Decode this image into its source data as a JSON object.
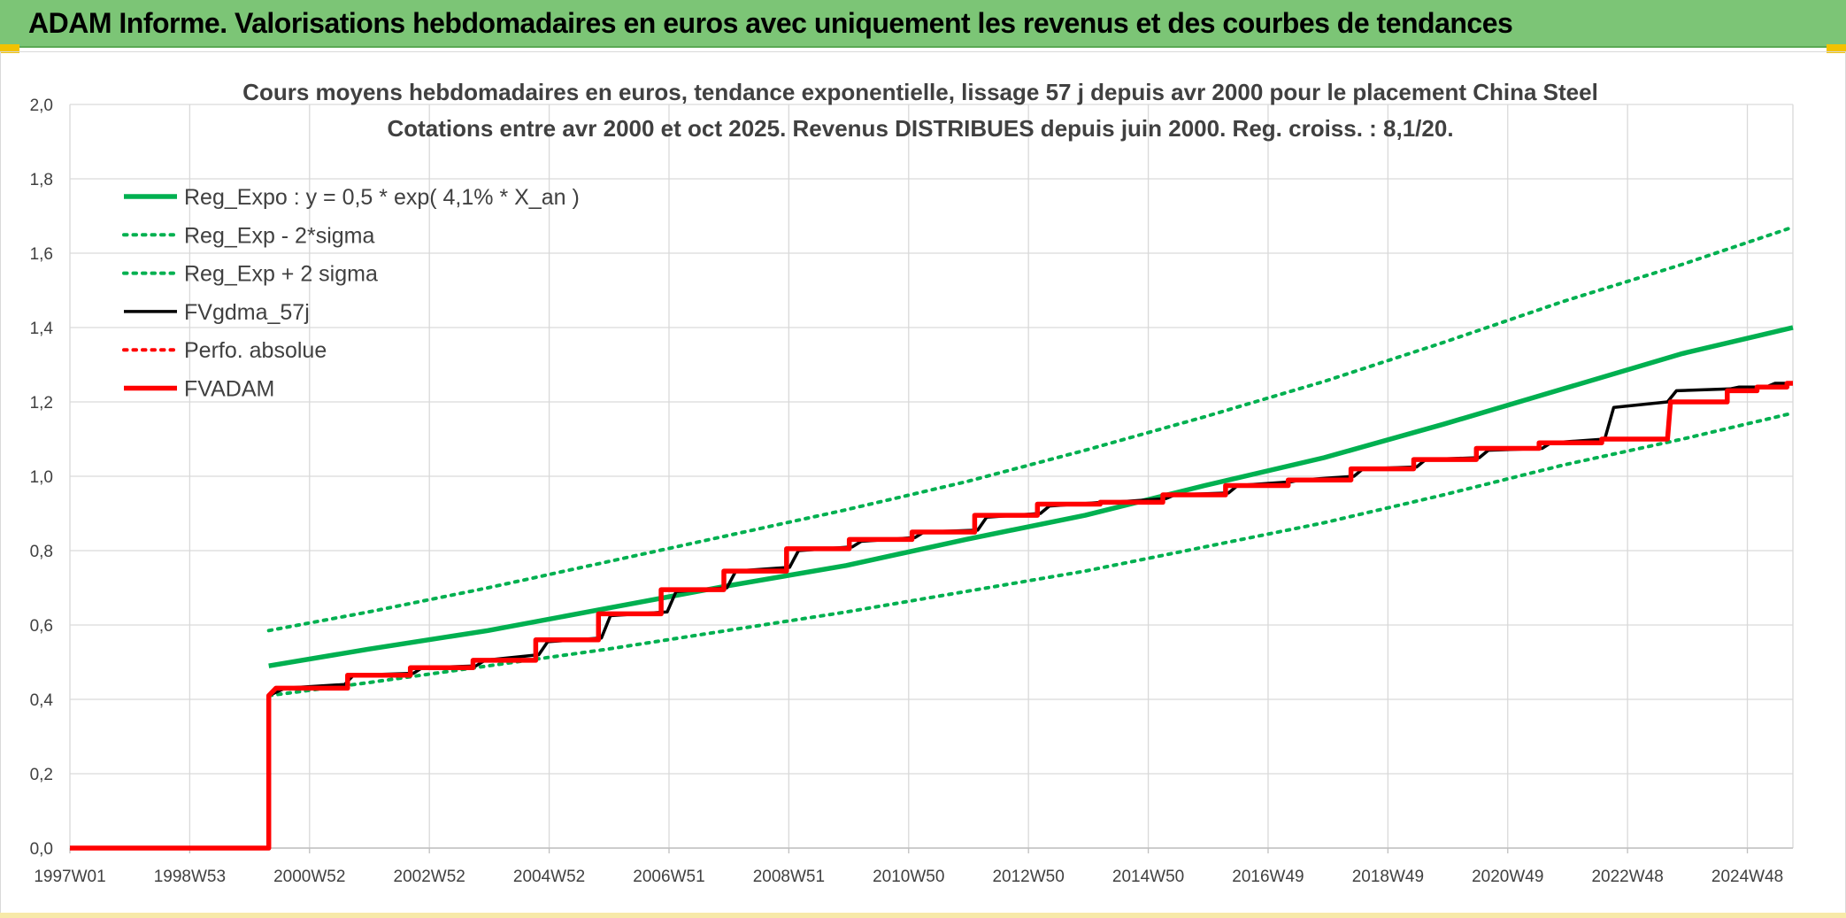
{
  "banner": {
    "title": "ADAM Informe. Valorisations hebdomadaires en euros avec uniquement les revenus et des courbes de tendances"
  },
  "colors": {
    "banner_bg": "#7cc576",
    "reg_expo": "#00b050",
    "fvgdma": "#000000",
    "perfo": "#ff0000",
    "fvadam": "#ff0000"
  },
  "chart_data": {
    "type": "line",
    "title": "Cours moyens hebdomadaires en euros, tendance exponentielle, lissage 57 j depuis avr 2000 pour le placement China Steel",
    "subtitle": "Cotations entre avr 2000 et oct 2025. Revenus DISTRIBUES depuis juin 2000. Reg. croiss. : 8,1/20.",
    "x_ticks": [
      "1997W01",
      "1998W53",
      "2000W52",
      "2002W52",
      "2004W52",
      "2006W51",
      "2008W51",
      "2010W50",
      "2012W50",
      "2014W50",
      "2016W49",
      "2018W49",
      "2020W49",
      "2022W48",
      "2024W48"
    ],
    "x_range": [
      1997.0,
      2025.85
    ],
    "ylim": [
      0,
      2.0
    ],
    "y_ticks": [
      "0,0",
      "0,2",
      "0,4",
      "0,6",
      "0,8",
      "1,0",
      "1,2",
      "1,4",
      "1,6",
      "1,8",
      "2,0"
    ],
    "grid": true,
    "legend_position": "top-left",
    "series": [
      {
        "name": "Reg_Expo : y = 0,5 * exp( 4,1% *  X_an )",
        "style": "solid-thick",
        "color": "#00b050",
        "points": [
          [
            2000.33,
            0.49
          ],
          [
            2002.0,
            0.535
          ],
          [
            2004.0,
            0.585
          ],
          [
            2006.0,
            0.645
          ],
          [
            2008.0,
            0.705
          ],
          [
            2010.0,
            0.76
          ],
          [
            2012.0,
            0.83
          ],
          [
            2014.0,
            0.895
          ],
          [
            2016.0,
            0.975
          ],
          [
            2018.0,
            1.05
          ],
          [
            2020.0,
            1.14
          ],
          [
            2022.0,
            1.235
          ],
          [
            2024.0,
            1.33
          ],
          [
            2025.85,
            1.4
          ]
        ]
      },
      {
        "name": "Reg_Exp - 2*sigma",
        "style": "dotted",
        "color": "#00b050",
        "points": [
          [
            2000.33,
            0.41
          ],
          [
            2002.0,
            0.445
          ],
          [
            2004.0,
            0.49
          ],
          [
            2006.0,
            0.535
          ],
          [
            2008.0,
            0.585
          ],
          [
            2010.0,
            0.635
          ],
          [
            2012.0,
            0.69
          ],
          [
            2014.0,
            0.745
          ],
          [
            2016.0,
            0.81
          ],
          [
            2018.0,
            0.875
          ],
          [
            2020.0,
            0.95
          ],
          [
            2022.0,
            1.03
          ],
          [
            2024.0,
            1.1
          ],
          [
            2025.85,
            1.17
          ]
        ]
      },
      {
        "name": "Reg_Exp + 2 sigma",
        "style": "dotted",
        "color": "#00b050",
        "points": [
          [
            2000.33,
            0.585
          ],
          [
            2002.0,
            0.635
          ],
          [
            2004.0,
            0.7
          ],
          [
            2006.0,
            0.77
          ],
          [
            2008.0,
            0.84
          ],
          [
            2010.0,
            0.91
          ],
          [
            2012.0,
            0.985
          ],
          [
            2014.0,
            1.07
          ],
          [
            2016.0,
            1.16
          ],
          [
            2018.0,
            1.255
          ],
          [
            2020.0,
            1.36
          ],
          [
            2022.0,
            1.47
          ],
          [
            2024.0,
            1.57
          ],
          [
            2025.85,
            1.67
          ]
        ]
      },
      {
        "name": "FVgdma_57j",
        "style": "solid",
        "color": "#000000",
        "points": [
          [
            1997.0,
            0.0
          ],
          [
            2000.33,
            0.0
          ],
          [
            2000.33,
            0.41
          ],
          [
            2000.6,
            0.43
          ],
          [
            2001.6,
            0.44
          ],
          [
            2001.75,
            0.465
          ],
          [
            2002.75,
            0.47
          ],
          [
            2002.9,
            0.485
          ],
          [
            2003.8,
            0.49
          ],
          [
            2003.95,
            0.505
          ],
          [
            2004.85,
            0.52
          ],
          [
            2005.0,
            0.555
          ],
          [
            2005.9,
            0.565
          ],
          [
            2006.05,
            0.625
          ],
          [
            2007.0,
            0.635
          ],
          [
            2007.15,
            0.69
          ],
          [
            2008.0,
            0.7
          ],
          [
            2008.15,
            0.745
          ],
          [
            2009.05,
            0.755
          ],
          [
            2009.2,
            0.8
          ],
          [
            2010.1,
            0.81
          ],
          [
            2010.25,
            0.825
          ],
          [
            2011.15,
            0.835
          ],
          [
            2011.3,
            0.85
          ],
          [
            2012.2,
            0.855
          ],
          [
            2012.35,
            0.89
          ],
          [
            2013.25,
            0.9
          ],
          [
            2013.4,
            0.92
          ],
          [
            2014.3,
            0.93
          ],
          [
            2014.45,
            0.93
          ],
          [
            2015.35,
            0.94
          ],
          [
            2015.5,
            0.95
          ],
          [
            2016.4,
            0.955
          ],
          [
            2016.55,
            0.975
          ],
          [
            2017.45,
            0.985
          ],
          [
            2017.6,
            0.99
          ],
          [
            2018.5,
            1.0
          ],
          [
            2018.65,
            1.02
          ],
          [
            2019.55,
            1.025
          ],
          [
            2019.7,
            1.045
          ],
          [
            2020.6,
            1.05
          ],
          [
            2020.75,
            1.07
          ],
          [
            2021.65,
            1.075
          ],
          [
            2021.8,
            1.09
          ],
          [
            2022.7,
            1.1
          ],
          [
            2022.85,
            1.185
          ],
          [
            2023.75,
            1.2
          ],
          [
            2023.9,
            1.23
          ],
          [
            2024.8,
            1.235
          ],
          [
            2024.95,
            1.24
          ],
          [
            2025.4,
            1.24
          ],
          [
            2025.55,
            1.25
          ],
          [
            2025.85,
            1.25
          ]
        ]
      },
      {
        "name": "Perfo. absolue",
        "style": "dotted",
        "color": "#ff0000",
        "points": []
      },
      {
        "name": "FVADAM",
        "style": "step-thick",
        "color": "#ff0000",
        "points": [
          [
            1997.0,
            0.0
          ],
          [
            2000.33,
            0.0
          ],
          [
            2000.33,
            0.41
          ],
          [
            2000.45,
            0.43
          ],
          [
            2001.65,
            0.43
          ],
          [
            2001.65,
            0.465
          ],
          [
            2002.7,
            0.465
          ],
          [
            2002.7,
            0.485
          ],
          [
            2003.75,
            0.485
          ],
          [
            2003.75,
            0.505
          ],
          [
            2004.8,
            0.505
          ],
          [
            2004.8,
            0.56
          ],
          [
            2005.85,
            0.56
          ],
          [
            2005.85,
            0.63
          ],
          [
            2006.9,
            0.63
          ],
          [
            2006.9,
            0.695
          ],
          [
            2007.95,
            0.695
          ],
          [
            2007.95,
            0.745
          ],
          [
            2009.0,
            0.745
          ],
          [
            2009.0,
            0.805
          ],
          [
            2010.05,
            0.805
          ],
          [
            2010.05,
            0.83
          ],
          [
            2011.1,
            0.83
          ],
          [
            2011.1,
            0.85
          ],
          [
            2012.15,
            0.85
          ],
          [
            2012.15,
            0.895
          ],
          [
            2013.2,
            0.895
          ],
          [
            2013.2,
            0.925
          ],
          [
            2014.25,
            0.925
          ],
          [
            2014.25,
            0.93
          ],
          [
            2015.3,
            0.93
          ],
          [
            2015.3,
            0.95
          ],
          [
            2016.35,
            0.95
          ],
          [
            2016.35,
            0.975
          ],
          [
            2017.4,
            0.975
          ],
          [
            2017.4,
            0.99
          ],
          [
            2018.45,
            0.99
          ],
          [
            2018.45,
            1.02
          ],
          [
            2019.5,
            1.02
          ],
          [
            2019.5,
            1.045
          ],
          [
            2020.55,
            1.045
          ],
          [
            2020.55,
            1.075
          ],
          [
            2021.6,
            1.075
          ],
          [
            2021.6,
            1.09
          ],
          [
            2022.65,
            1.09
          ],
          [
            2022.65,
            1.1
          ],
          [
            2023.75,
            1.1
          ],
          [
            2023.8,
            1.2
          ],
          [
            2024.75,
            1.2
          ],
          [
            2024.75,
            1.23
          ],
          [
            2025.25,
            1.23
          ],
          [
            2025.25,
            1.24
          ],
          [
            2025.75,
            1.24
          ],
          [
            2025.75,
            1.25
          ],
          [
            2025.85,
            1.25
          ]
        ]
      }
    ]
  }
}
